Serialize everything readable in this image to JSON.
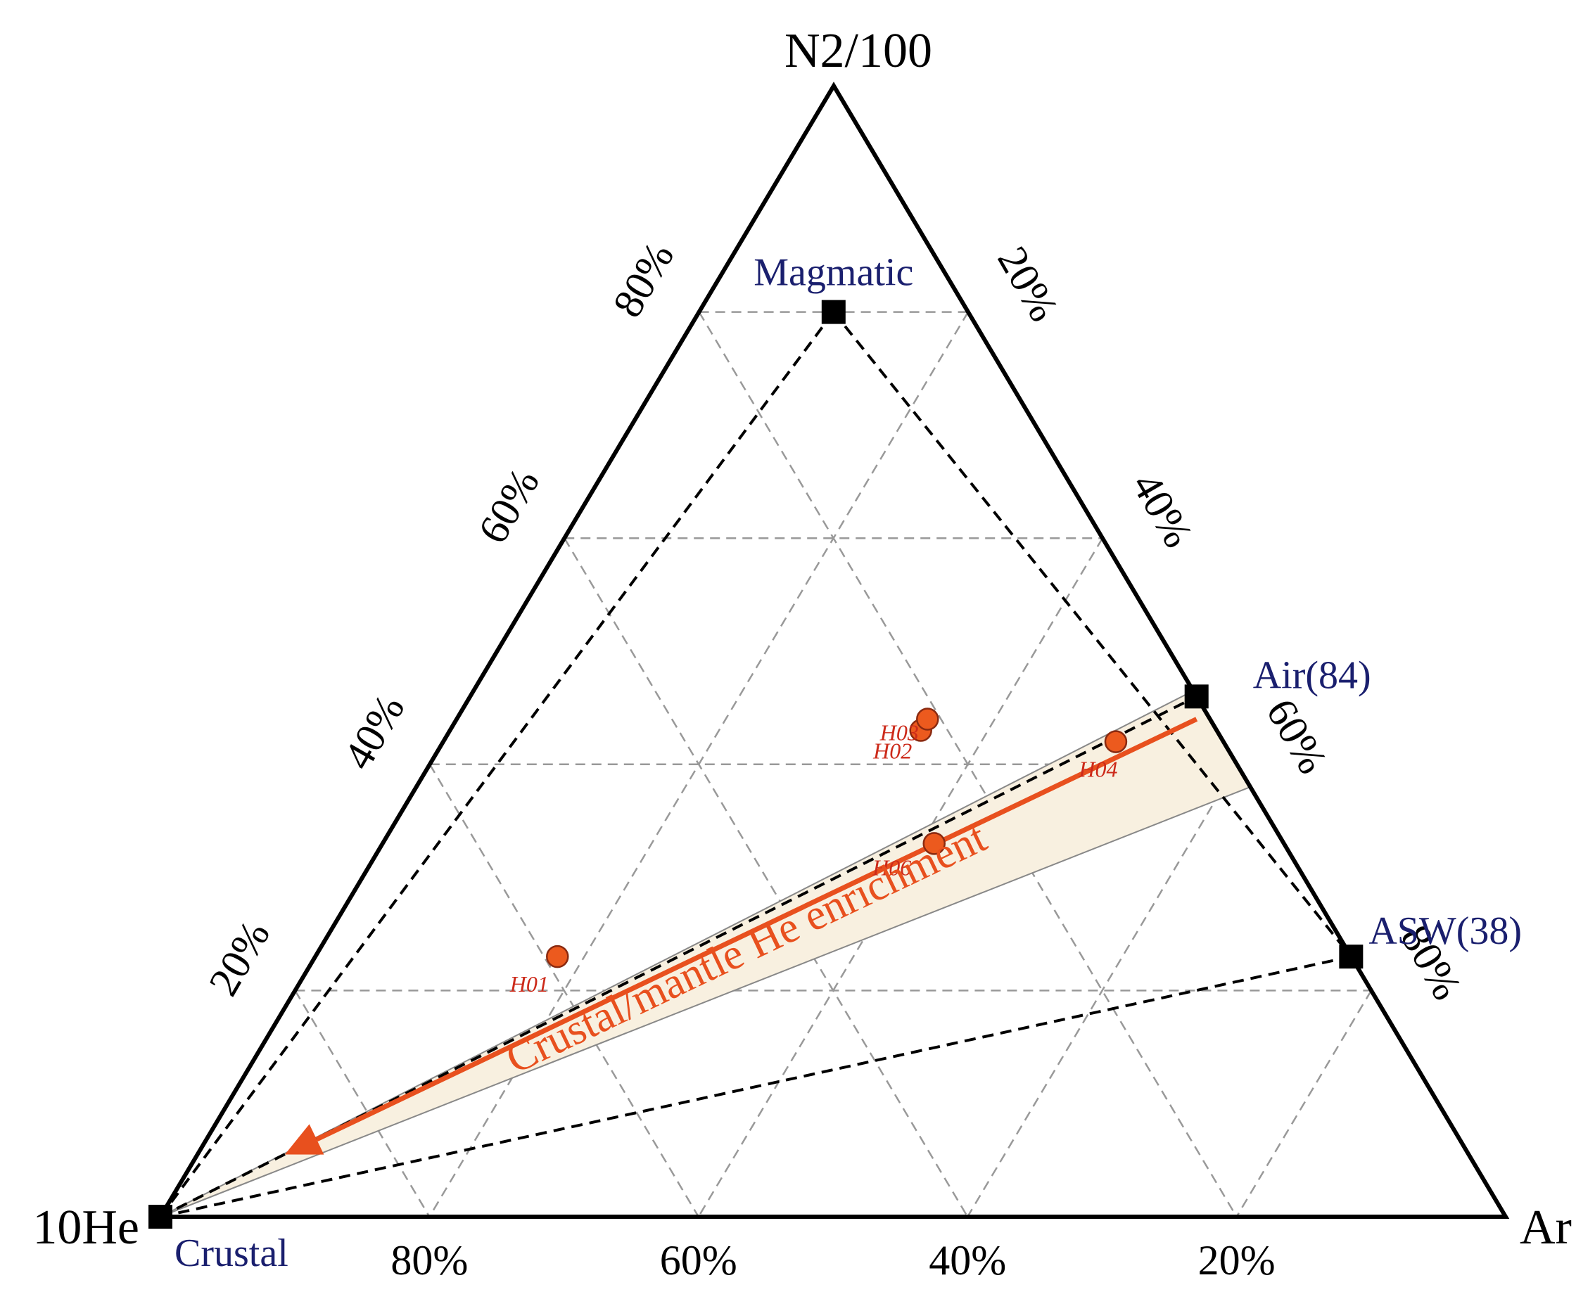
{
  "chart_data": {
    "type": "ternary",
    "vertices": {
      "top": "N2/100",
      "left": "10He",
      "right": "Ar"
    },
    "axes": {
      "left_edge_ticks": [
        "20%",
        "40%",
        "60%",
        "80%"
      ],
      "right_edge_ticks": [
        "20%",
        "40%",
        "60%",
        "80%"
      ],
      "bottom_edge_ticks": [
        "80%",
        "60%",
        "40%",
        "20%"
      ]
    },
    "grid": true,
    "end_members": [
      {
        "label": "Magmatic",
        "He": 10,
        "N2": 80,
        "Ar": 10
      },
      {
        "label": "Air(84)",
        "He": 0,
        "N2": 46,
        "Ar": 54
      },
      {
        "label": "ASW(38)",
        "He": 0,
        "N2": 23,
        "Ar": 77
      },
      {
        "label": "Crustal",
        "He": 100,
        "N2": 0,
        "Ar": 0
      }
    ],
    "samples": [
      {
        "label": "H01",
        "He": 59,
        "N2": 23,
        "Ar": 18
      },
      {
        "label": "H02",
        "He": 22,
        "N2": 43,
        "Ar": 35
      },
      {
        "label": "H03",
        "He": 21,
        "N2": 44,
        "Ar": 35
      },
      {
        "label": "H04",
        "He": 8,
        "N2": 42,
        "Ar": 50
      },
      {
        "label": "H06",
        "He": 26,
        "N2": 33,
        "Ar": 41
      }
    ],
    "trend_label": "Crustal/mantle He enrichment",
    "colors": {
      "end_member_label": "#1a1f6e",
      "sample_fill": "#ec5a1e",
      "sample_label": "#cc2a1a",
      "trend": "#e8501e",
      "band_fill": "#f8f0e0",
      "grid": "#999999"
    }
  }
}
